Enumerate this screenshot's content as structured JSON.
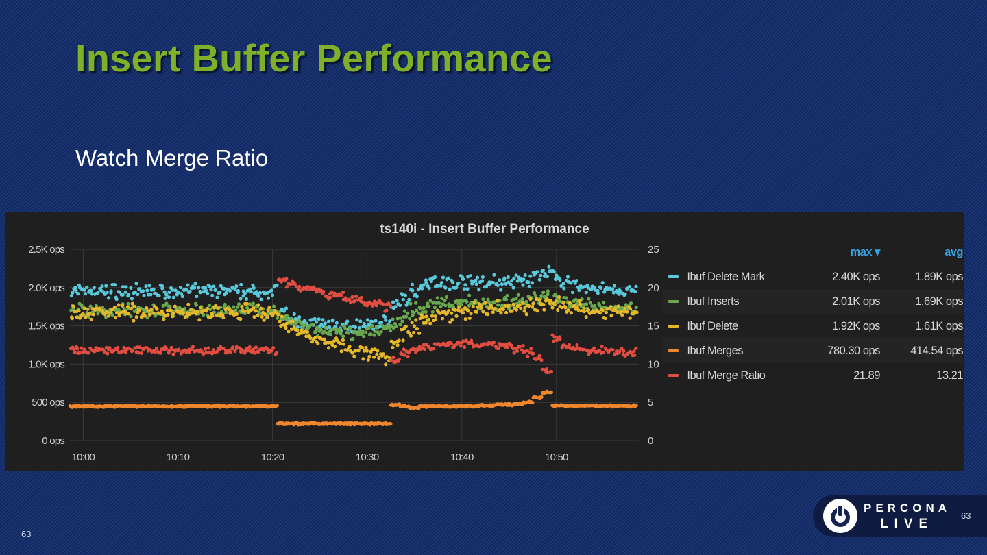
{
  "slide": {
    "title": "Insert Buffer Performance",
    "subtitle": "Watch Merge Ratio",
    "page_number": "63",
    "page_number_right": "63"
  },
  "logo": {
    "line1": "PERCONA",
    "line2": "LIVE"
  },
  "legend": {
    "header_max": "max ▾",
    "header_avg": "avg",
    "rows": [
      {
        "name": "Ibuf Delete Mark",
        "max": "2.40K ops",
        "avg": "1.89K ops"
      },
      {
        "name": "Ibuf Inserts",
        "max": "2.01K ops",
        "avg": "1.69K ops"
      },
      {
        "name": "Ibuf Delete",
        "max": "1.92K ops",
        "avg": "1.61K ops"
      },
      {
        "name": "Ibuf Merges",
        "max": "780.30 ops",
        "avg": "414.54 ops"
      },
      {
        "name": "Ibuf Merge Ratio",
        "max": "21.89",
        "avg": "13.21"
      }
    ]
  },
  "chart_data": {
    "type": "scatter",
    "title": "ts140i - Insert Buffer Performance",
    "x_unit": "minutes after 10:00 (per-minute means, t = -1..58)",
    "x_start": -1,
    "xlim": [
      -1.4,
      58.7
    ],
    "x_ticks": [
      {
        "v": 0,
        "label": "10:00"
      },
      {
        "v": 10,
        "label": "10:10"
      },
      {
        "v": 20,
        "label": "10:20"
      },
      {
        "v": 30,
        "label": "10:30"
      },
      {
        "v": 40,
        "label": "10:40"
      },
      {
        "v": 50,
        "label": "10:50"
      }
    ],
    "ylim_left": [
      0,
      2500
    ],
    "y_ticks_left": [
      {
        "v": 0,
        "label": "0 ops"
      },
      {
        "v": 500,
        "label": "500 ops"
      },
      {
        "v": 1000,
        "label": "1.0K ops"
      },
      {
        "v": 1500,
        "label": "1.5K ops"
      },
      {
        "v": 2000,
        "label": "2.0K ops"
      },
      {
        "v": 2500,
        "label": "2.5K ops"
      }
    ],
    "ylim_right": [
      0,
      25
    ],
    "y_ticks_right": [
      {
        "v": 0,
        "label": "0"
      },
      {
        "v": 5,
        "label": "5"
      },
      {
        "v": 10,
        "label": "10"
      },
      {
        "v": 15,
        "label": "15"
      },
      {
        "v": 20,
        "label": "20"
      },
      {
        "v": 25,
        "label": "25"
      }
    ],
    "grid": true,
    "legend_position": "right",
    "series": [
      {
        "name": "Ibuf Delete Mark",
        "color": "#5ac8db",
        "axis": "left",
        "jitter": 110,
        "values": [
          1950,
          1950,
          1950,
          1950,
          1950,
          1950,
          1950,
          1950,
          1950,
          1950,
          1950,
          1950,
          1950,
          1950,
          1950,
          1950,
          1950,
          1950,
          1950,
          1950,
          1950,
          1950,
          1650,
          1600,
          1560,
          1540,
          1520,
          1500,
          1500,
          1490,
          1500,
          1510,
          1530,
          1560,
          1750,
          1850,
          1950,
          2050,
          2080,
          2060,
          2050,
          2080,
          2070,
          2060,
          2080,
          2050,
          2070,
          2080,
          2100,
          2180,
          2200,
          2150,
          2050,
          2020,
          2000,
          1980,
          1980,
          1960,
          1950,
          1950
        ]
      },
      {
        "name": "Ibuf Inserts",
        "color": "#6aa84f",
        "axis": "left",
        "jitter": 110,
        "values": [
          1700,
          1700,
          1700,
          1700,
          1700,
          1700,
          1700,
          1700,
          1700,
          1700,
          1700,
          1700,
          1700,
          1700,
          1700,
          1700,
          1700,
          1700,
          1700,
          1700,
          1700,
          1700,
          1600,
          1550,
          1500,
          1470,
          1450,
          1420,
          1400,
          1400,
          1400,
          1410,
          1430,
          1450,
          1550,
          1650,
          1700,
          1750,
          1780,
          1800,
          1780,
          1800,
          1820,
          1800,
          1820,
          1800,
          1820,
          1830,
          1850,
          1850,
          1870,
          1850,
          1800,
          1780,
          1760,
          1750,
          1750,
          1740,
          1740,
          1730
        ]
      },
      {
        "name": "Ibuf Delete",
        "color": "#e5b82a",
        "axis": "left",
        "jitter": 120,
        "values": [
          1680,
          1680,
          1680,
          1680,
          1680,
          1680,
          1680,
          1680,
          1680,
          1680,
          1680,
          1680,
          1680,
          1680,
          1680,
          1680,
          1680,
          1680,
          1680,
          1680,
          1680,
          1680,
          1550,
          1480,
          1420,
          1380,
          1330,
          1280,
          1250,
          1220,
          1180,
          1150,
          1120,
          1100,
          1300,
          1400,
          1480,
          1580,
          1620,
          1650,
          1660,
          1680,
          1700,
          1700,
          1720,
          1720,
          1730,
          1740,
          1750,
          1780,
          1800,
          1780,
          1750,
          1720,
          1700,
          1700,
          1690,
          1680,
          1680,
          1670
        ]
      },
      {
        "name": "Ibuf Merges",
        "color": "#f0862d",
        "axis": "left",
        "jitter": 15,
        "values": [
          450,
          450,
          450,
          450,
          450,
          450,
          450,
          450,
          450,
          450,
          450,
          450,
          450,
          450,
          450,
          450,
          450,
          450,
          450,
          450,
          450,
          450,
          220,
          220,
          220,
          220,
          220,
          220,
          220,
          220,
          220,
          220,
          220,
          220,
          470,
          450,
          430,
          450,
          450,
          450,
          450,
          450,
          450,
          460,
          460,
          470,
          470,
          480,
          500,
          560,
          630,
          460,
          455,
          455,
          455,
          455,
          455,
          455,
          455,
          455
        ]
      },
      {
        "name": "Ibuf Merge Ratio",
        "color": "#e24d42",
        "axis": "right",
        "jitter": 0.6,
        "values": [
          11.8,
          11.8,
          11.8,
          11.8,
          11.8,
          11.8,
          11.8,
          11.8,
          11.8,
          11.8,
          11.8,
          11.8,
          11.8,
          11.8,
          11.8,
          11.8,
          11.8,
          11.8,
          11.8,
          11.8,
          11.8,
          11.8,
          21,
          20.5,
          20,
          20,
          19.5,
          19,
          19,
          18.5,
          18.5,
          18,
          18,
          17.5,
          10.5,
          11.5,
          12,
          12.2,
          12.4,
          12.5,
          12.6,
          12.7,
          12.6,
          12.5,
          12.6,
          12.4,
          12.3,
          12,
          11.5,
          11,
          9,
          13.5,
          12.5,
          12,
          11.8,
          11.7,
          11.8,
          11.6,
          11.5,
          11.5
        ]
      }
    ]
  }
}
